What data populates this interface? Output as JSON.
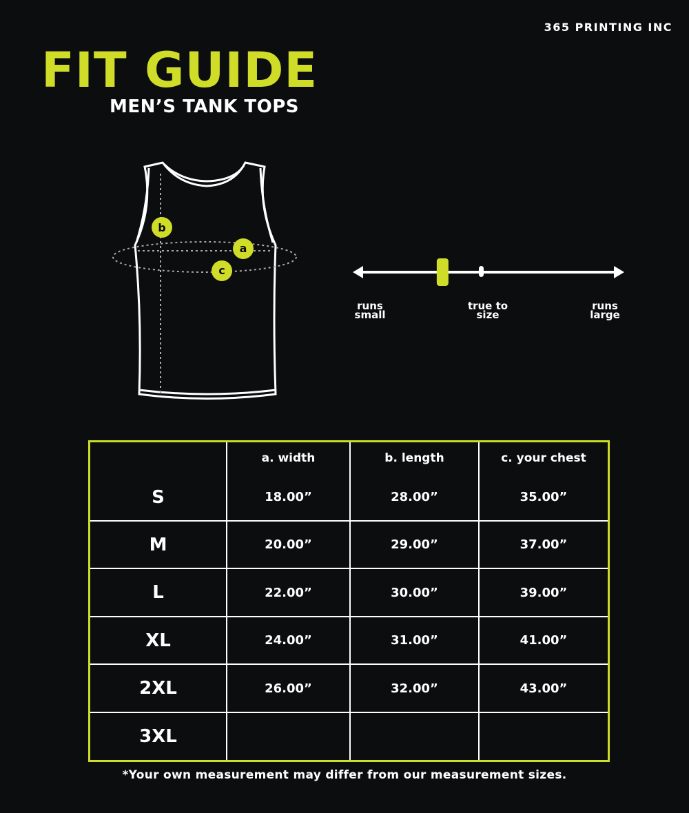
{
  "brand": "365 PRINTING INC",
  "title": "FIT GUIDE",
  "subtitle": "MEN’S TANK TOPS",
  "diagram": {
    "markers": [
      "a",
      "b",
      "c"
    ]
  },
  "fit_scale": {
    "left_label": [
      "runs",
      "small"
    ],
    "middle_label": [
      "true to",
      "size"
    ],
    "right_label": [
      "runs",
      "large"
    ],
    "fit_position": 0.33
  },
  "colors": {
    "accent": "#cfdc28",
    "background": "#0b0d0e"
  },
  "table": {
    "headers": [
      "",
      "a. width",
      "b. length",
      "c. your chest"
    ],
    "rows": [
      [
        "S",
        "18.00”",
        "28.00”",
        "35.00”"
      ],
      [
        "M",
        "20.00”",
        "29.00”",
        "37.00”"
      ],
      [
        "L",
        "22.00”",
        "30.00”",
        "39.00”"
      ],
      [
        "XL",
        "24.00”",
        "31.00”",
        "41.00”"
      ],
      [
        "2XL",
        "26.00”",
        "32.00”",
        "43.00”"
      ],
      [
        "3XL",
        "",
        "",
        ""
      ]
    ]
  },
  "footnote": "*Your own measurement may differ from our measurement sizes."
}
